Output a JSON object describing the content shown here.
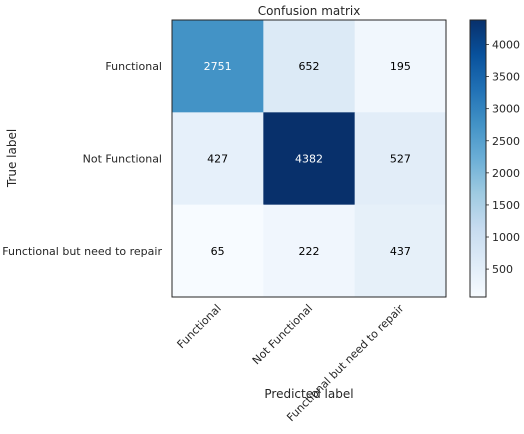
{
  "chart_data": {
    "type": "heatmap",
    "title": "Confusion matrix",
    "xlabel": "Predicted label",
    "ylabel": "True label",
    "x_categories": [
      "Functional",
      "Not Functional",
      "Functional but need to repair"
    ],
    "y_categories": [
      "Functional",
      "Not Functional",
      "Functional but need to repair"
    ],
    "matrix": [
      [
        2751,
        652,
        195
      ],
      [
        427,
        4382,
        527
      ],
      [
        65,
        222,
        437
      ]
    ],
    "colormap": "Blues",
    "colorbar": {
      "min": 65,
      "max": 4382,
      "ticks": [
        500,
        1000,
        1500,
        2000,
        2500,
        3000,
        3500,
        4000
      ]
    },
    "grid": false
  }
}
